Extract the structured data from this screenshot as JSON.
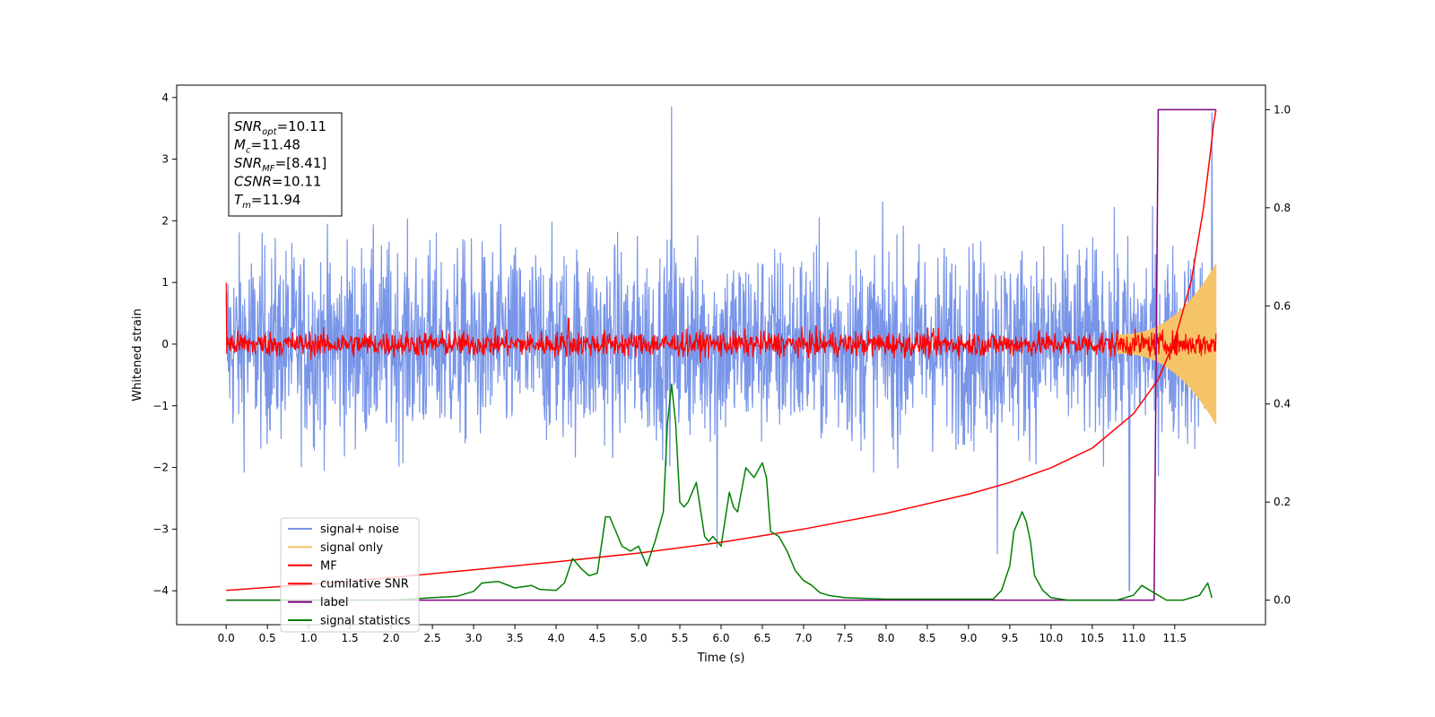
{
  "chart_data": {
    "type": "line",
    "xlabel": "Time (s)",
    "ylabel": "Whitened strain",
    "xlim": [
      -0.6,
      12.6
    ],
    "ylim": [
      -4.55,
      4.2
    ],
    "y2lim": [
      -0.05,
      1.05
    ],
    "x_ticks": [
      "0.0",
      "0.5",
      "1.0",
      "1.5",
      "2.0",
      "2.5",
      "3.0",
      "3.5",
      "4.0",
      "4.5",
      "5.0",
      "5.5",
      "6.0",
      "6.5",
      "7.0",
      "7.5",
      "8.0",
      "8.5",
      "9.0",
      "9.5",
      "10.0",
      "10.5",
      "11.0",
      "11.5"
    ],
    "y_ticks": [
      "−4",
      "−3",
      "−2",
      "−1",
      "0",
      "1",
      "2",
      "3",
      "4"
    ],
    "y2_ticks": [
      "0.0",
      "0.2",
      "0.4",
      "0.6",
      "0.8",
      "1.0"
    ],
    "grid": false,
    "legend_position": "lower-left",
    "annotation": {
      "lines": [
        {
          "name": "SNR",
          "sub": "opt",
          "value": "=10.11"
        },
        {
          "name": "M",
          "sub": "c",
          "value": "=11.48"
        },
        {
          "name": "SNR",
          "sub": "MF",
          "value": "=[8.41]"
        },
        {
          "name": "CSNR",
          "sub": "",
          "value": "=10.11"
        },
        {
          "name": "T",
          "sub": "m",
          "value": "=11.94"
        }
      ]
    },
    "series": [
      {
        "name": "signal+ noise",
        "color": "#7895e8",
        "axis": "left",
        "kind": "noise",
        "x_range": [
          0,
          12.0
        ],
        "spread": 0.8,
        "peaks": [
          [
            5.4,
            3.85
          ],
          [
            11.95,
            3.75
          ],
          [
            10.95,
            -4.0
          ],
          [
            5.95,
            -3.3
          ],
          [
            9.35,
            -3.4
          ]
        ]
      },
      {
        "name": "signal only",
        "color": "#f5c469",
        "axis": "left",
        "kind": "chirp",
        "x_range": [
          10.8,
          12.0
        ],
        "amplitude_end": 1.3
      },
      {
        "name": "MF",
        "color": "#ff0000",
        "axis": "left",
        "kind": "noise",
        "x_range": [
          0,
          12.0
        ],
        "spread": 0.1,
        "peaks": [
          [
            0.0,
            1.0
          ],
          [
            4.15,
            0.42
          ]
        ]
      },
      {
        "name": "cumilative SNR",
        "color": "#ff0000",
        "axis": "right",
        "x": [
          0.0,
          1.0,
          2.0,
          3.0,
          4.0,
          5.0,
          6.0,
          7.0,
          8.0,
          9.0,
          9.5,
          10.0,
          10.5,
          11.0,
          11.3,
          11.5,
          11.7,
          11.85,
          11.93,
          11.97,
          12.0
        ],
        "y": [
          0.02,
          0.032,
          0.046,
          0.062,
          0.078,
          0.096,
          0.118,
          0.145,
          0.177,
          0.216,
          0.24,
          0.27,
          0.31,
          0.38,
          0.45,
          0.53,
          0.65,
          0.8,
          0.91,
          0.97,
          1.0
        ]
      },
      {
        "name": "label",
        "color": "#800080",
        "axis": "right",
        "x": [
          0.0,
          11.25,
          11.3,
          12.0
        ],
        "y": [
          0.0,
          0.0,
          1.0,
          1.0
        ]
      },
      {
        "name": "signal statistics",
        "color": "#008000",
        "axis": "right",
        "x": [
          0.0,
          0.5,
          1.0,
          1.5,
          2.0,
          2.5,
          2.8,
          3.0,
          3.1,
          3.3,
          3.5,
          3.7,
          3.8,
          4.0,
          4.1,
          4.2,
          4.3,
          4.4,
          4.5,
          4.6,
          4.65,
          4.7,
          4.8,
          4.9,
          5.0,
          5.1,
          5.2,
          5.3,
          5.35,
          5.4,
          5.45,
          5.5,
          5.55,
          5.6,
          5.7,
          5.8,
          5.85,
          5.9,
          6.0,
          6.1,
          6.15,
          6.2,
          6.3,
          6.4,
          6.5,
          6.55,
          6.6,
          6.7,
          6.8,
          6.9,
          7.0,
          7.1,
          7.2,
          7.3,
          7.5,
          8.0,
          8.5,
          9.0,
          9.2,
          9.3,
          9.4,
          9.5,
          9.55,
          9.6,
          9.65,
          9.7,
          9.75,
          9.8,
          9.9,
          10.0,
          10.2,
          10.5,
          10.8,
          11.0,
          11.1,
          11.2,
          11.4,
          11.6,
          11.8,
          11.9,
          11.95
        ],
        "y": [
          0.0,
          0.0,
          0.0,
          0.0,
          0.0,
          0.005,
          0.008,
          0.018,
          0.035,
          0.038,
          0.025,
          0.03,
          0.022,
          0.02,
          0.035,
          0.085,
          0.065,
          0.05,
          0.055,
          0.17,
          0.17,
          0.15,
          0.11,
          0.1,
          0.11,
          0.07,
          0.12,
          0.18,
          0.36,
          0.44,
          0.36,
          0.2,
          0.19,
          0.2,
          0.24,
          0.13,
          0.12,
          0.13,
          0.11,
          0.22,
          0.19,
          0.18,
          0.27,
          0.25,
          0.28,
          0.25,
          0.14,
          0.13,
          0.1,
          0.06,
          0.04,
          0.03,
          0.015,
          0.01,
          0.005,
          0.002,
          0.002,
          0.002,
          0.002,
          0.002,
          0.02,
          0.07,
          0.14,
          0.16,
          0.18,
          0.16,
          0.12,
          0.05,
          0.02,
          0.005,
          0.0,
          0.0,
          0.0,
          0.01,
          0.03,
          0.02,
          0.0,
          0.0,
          0.01,
          0.035,
          0.005
        ]
      }
    ]
  }
}
